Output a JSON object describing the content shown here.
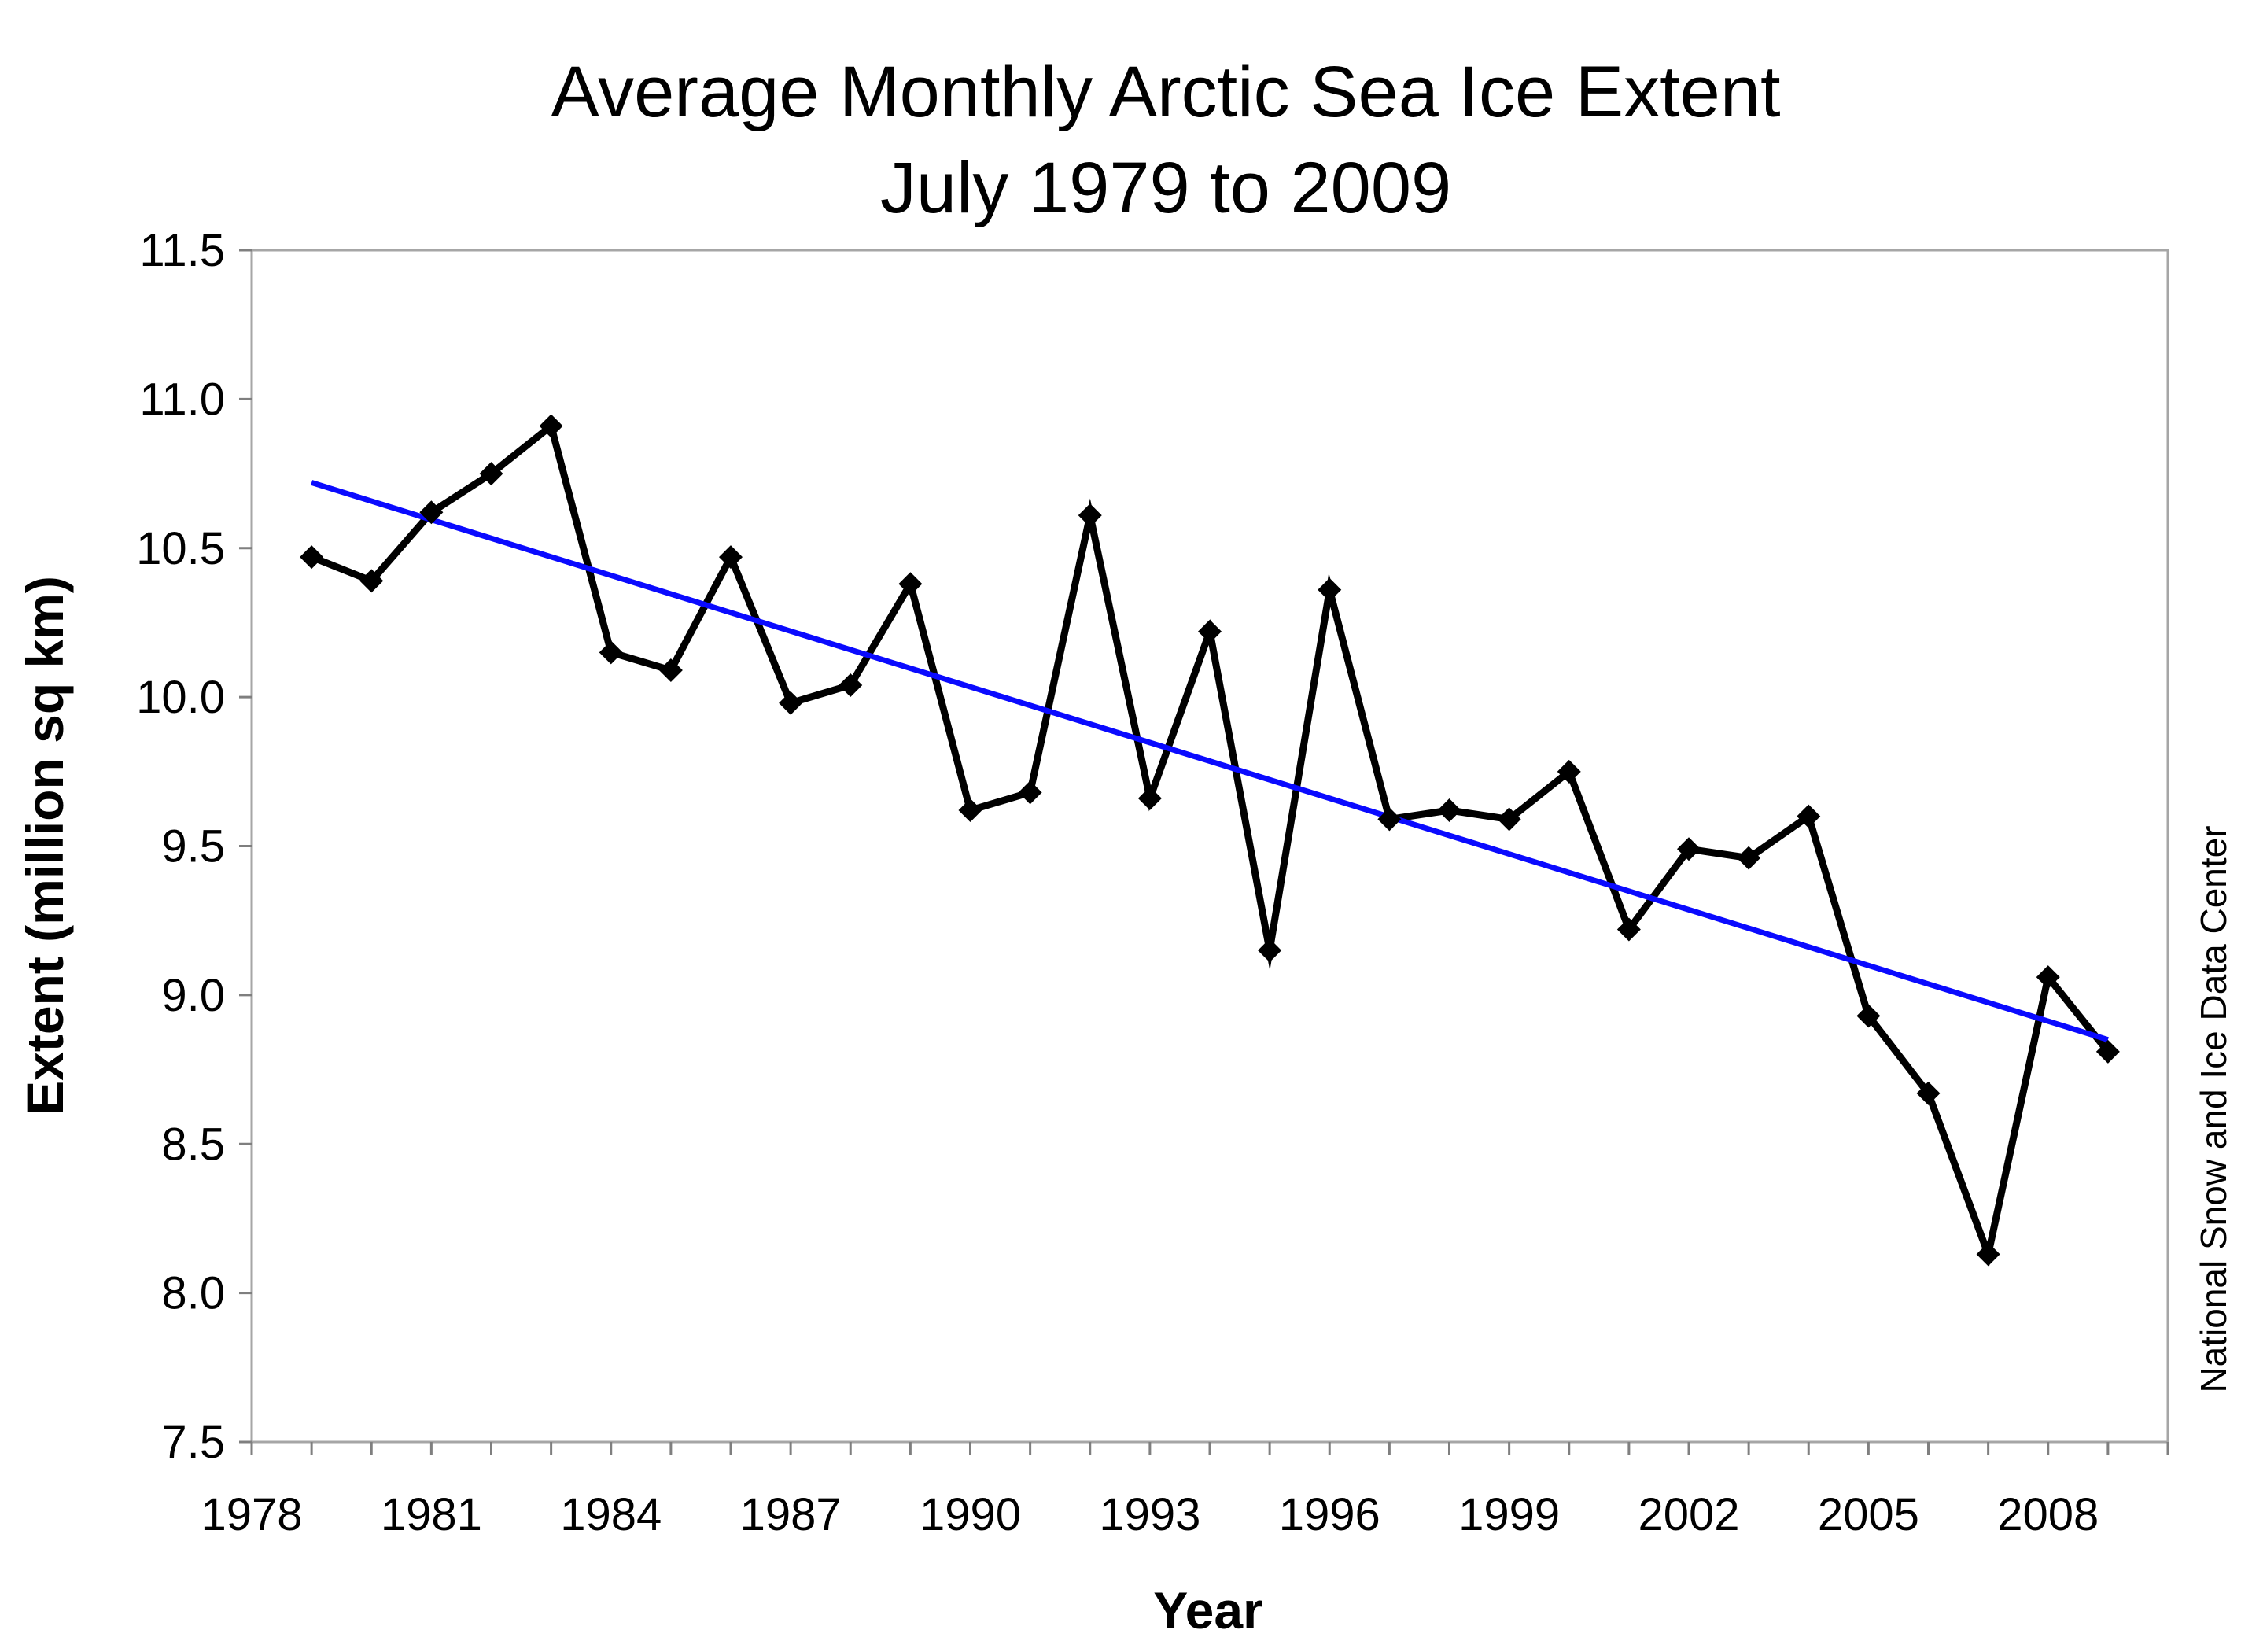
{
  "chart_data": {
    "type": "line",
    "title": "Average Monthly Arctic Sea Ice Extent",
    "subtitle": "July 1979 to 2009",
    "xlabel": "Year",
    "ylabel": "Extent (million sq km)",
    "source": "National Snow and Ice Data Center",
    "xlim": [
      1978,
      2010
    ],
    "ylim": [
      7.5,
      11.5
    ],
    "x_ticks": [
      1978,
      1981,
      1984,
      1987,
      1990,
      1993,
      1996,
      1999,
      2002,
      2005,
      2008
    ],
    "y_ticks": [
      7.5,
      8.0,
      8.5,
      9.0,
      9.5,
      10.0,
      10.5,
      11.0,
      11.5
    ],
    "grid": false,
    "legend": "none",
    "series": [
      {
        "kind": "data",
        "color": "#000000",
        "marker": "diamond",
        "x": [
          1979,
          1980,
          1981,
          1982,
          1983,
          1984,
          1985,
          1986,
          1987,
          1988,
          1989,
          1990,
          1991,
          1992,
          1993,
          1994,
          1995,
          1996,
          1997,
          1998,
          1999,
          2000,
          2001,
          2002,
          2003,
          2004,
          2005,
          2006,
          2007,
          2008,
          2009
        ],
        "values": [
          10.47,
          10.39,
          10.62,
          10.75,
          10.91,
          10.15,
          10.09,
          10.47,
          9.98,
          10.04,
          10.38,
          9.62,
          9.68,
          10.61,
          9.66,
          10.22,
          9.15,
          10.36,
          9.59,
          9.62,
          9.59,
          9.75,
          9.22,
          9.49,
          9.46,
          9.6,
          8.93,
          8.67,
          8.13,
          9.06,
          8.81
        ]
      },
      {
        "kind": "trend",
        "color": "#0a0aff",
        "x": [
          1979,
          2009
        ],
        "values": [
          10.72,
          8.85
        ]
      }
    ]
  }
}
